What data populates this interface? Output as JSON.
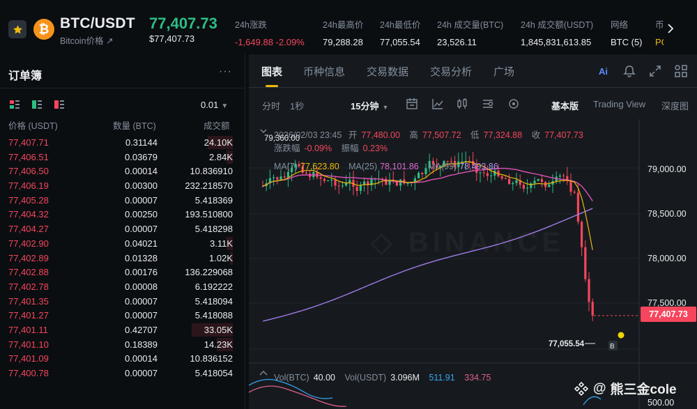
{
  "ticker": {
    "pair": "BTC/USDT",
    "pair_sub": "Bitcoin价格 ↗",
    "last_price": "77,407.73",
    "last_price_usd": "$77,407.73",
    "stats": [
      {
        "label": "24h涨跌",
        "value": "-1,649.88 -2.09%",
        "tone": "red"
      },
      {
        "label": "24h最高价",
        "value": "79,288.28",
        "tone": "white"
      },
      {
        "label": "24h最低价",
        "value": "77,055.54",
        "tone": "white"
      },
      {
        "label": "24h 成交量(BTC)",
        "value": "23,526.11",
        "tone": "white"
      },
      {
        "label": "24h 成交额(USDT)",
        "value": "1,845,831,613.85",
        "tone": "white"
      },
      {
        "label": "网络",
        "value": "BTC (5)",
        "tone": "white"
      },
      {
        "label": "币",
        "value": "PC",
        "tone": "orange"
      }
    ]
  },
  "orderbook": {
    "title": "订单簿",
    "precision": "0.01",
    "headers": {
      "price": "价格 (USDT)",
      "qty": "数量 (BTC)",
      "total": "成交额"
    },
    "rows": [
      {
        "price": "77,407.71",
        "qty": "0.31144",
        "total": "24.10K",
        "depth": 0.2
      },
      {
        "price": "77,406.51",
        "qty": "0.03679",
        "total": "2.84K",
        "depth": 0.05
      },
      {
        "price": "77,406.50",
        "qty": "0.00014",
        "total": "10.836910",
        "depth": 0
      },
      {
        "price": "77,406.19",
        "qty": "0.00300",
        "total": "232.218570",
        "depth": 0
      },
      {
        "price": "77,405.28",
        "qty": "0.00007",
        "total": "5.418369",
        "depth": 0
      },
      {
        "price": "77,404.32",
        "qty": "0.00250",
        "total": "193.510800",
        "depth": 0
      },
      {
        "price": "77,404.27",
        "qty": "0.00007",
        "total": "5.418298",
        "depth": 0
      },
      {
        "price": "77,402.90",
        "qty": "0.04021",
        "total": "3.11K",
        "depth": 0.05
      },
      {
        "price": "77,402.89",
        "qty": "0.01328",
        "total": "1.02K",
        "depth": 0.02
      },
      {
        "price": "77,402.88",
        "qty": "0.00176",
        "total": "136.229068",
        "depth": 0
      },
      {
        "price": "77,402.78",
        "qty": "0.00008",
        "total": "6.192222",
        "depth": 0
      },
      {
        "price": "77,401.35",
        "qty": "0.00007",
        "total": "5.418094",
        "depth": 0
      },
      {
        "price": "77,401.27",
        "qty": "0.00007",
        "total": "5.418088",
        "depth": 0
      },
      {
        "price": "77,401.11",
        "qty": "0.42707",
        "total": "33.05K",
        "depth": 0.33
      },
      {
        "price": "77,401.10",
        "qty": "0.18389",
        "total": "14.23K",
        "depth": 0.13
      },
      {
        "price": "77,401.09",
        "qty": "0.00014",
        "total": "10.836152",
        "depth": 0
      },
      {
        "price": "77,400.78",
        "qty": "0.00007",
        "total": "5.418054",
        "depth": 0
      }
    ]
  },
  "chart": {
    "tabs": [
      "图表",
      "币种信息",
      "交易数据",
      "交易分析",
      "广场"
    ],
    "toolbar": {
      "time_label": "分时",
      "interval_1s": "1秒",
      "interval": "15分钟",
      "basic": "基本版",
      "tradingview": "Trading View",
      "depth": "深度图"
    },
    "ohlc": {
      "date": "2026/02/03 23:45",
      "open_label": "开",
      "open": "77,480.00",
      "high_label": "高",
      "high": "77,507.72",
      "low_label": "低",
      "low": "77,324.88",
      "close_label": "收",
      "close": "77,407.73"
    },
    "change": {
      "change_label": "涨跌幅",
      "change": "-0.09%",
      "amp_label": "振幅",
      "amp": "0.23%"
    },
    "ma": {
      "ma7_label": "MA(7)",
      "ma7": "77,623.80",
      "ma25_label": "MA(25)",
      "ma25": "78,101.86",
      "ma99_label": "MA(99)",
      "ma99": "78,493.86"
    },
    "vol": {
      "btc_label": "Vol(BTC)",
      "btc": "40.00",
      "usdt_label": "Vol(USDT)",
      "usdt": "3.096M",
      "v1": "511.91",
      "v2": "334.75"
    },
    "high_marker": "79,360.00",
    "low_marker": "77,055.54",
    "price_tag": "77,407.73",
    "y_axis": [
      "79,000.00",
      "78,500.00",
      "78,000.00",
      "77,500.00"
    ],
    "vol_axis": "500.00",
    "watermark": "熊三金cole",
    "watermark_logo": "BINANCE"
  },
  "colors": {
    "up": "#2ebd85",
    "down": "#f6465d",
    "accent": "#f0b90b"
  }
}
